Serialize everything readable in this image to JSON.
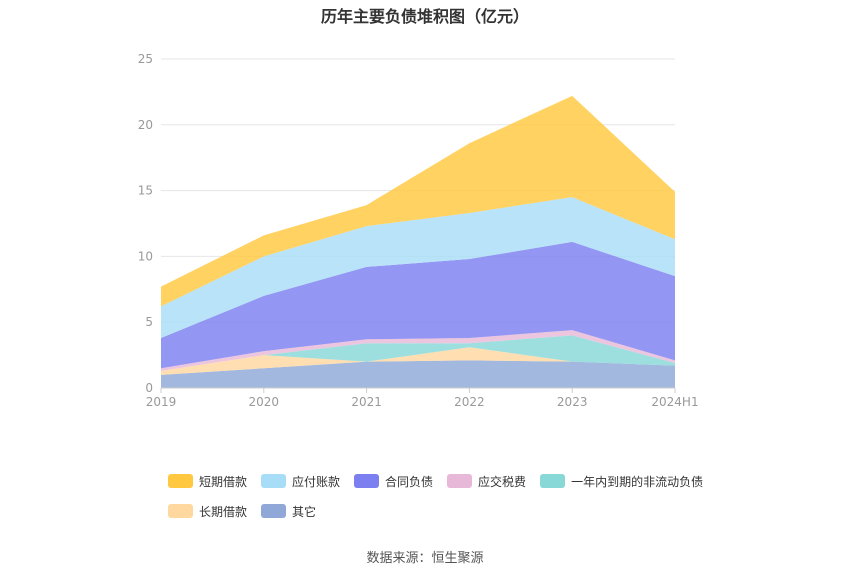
{
  "chart_data": {
    "type": "area",
    "title": "历年主要负债堆积图（亿元）",
    "xlabel": "",
    "ylabel": "",
    "categories": [
      "2019",
      "2020",
      "2021",
      "2022",
      "2023",
      "2024H1"
    ],
    "ylim": [
      0,
      25
    ],
    "yticks": [
      0,
      5,
      10,
      15,
      20,
      25
    ],
    "grid": true,
    "stacked": true,
    "legend_position": "bottom",
    "series": [
      {
        "name": "其它",
        "color": "#8fa8d8",
        "values": [
          1.0,
          1.5,
          2.0,
          2.1,
          2.0,
          1.7
        ]
      },
      {
        "name": "长期借款",
        "color": "#ffd8a0",
        "values": [
          0.3,
          1.0,
          0.0,
          1.0,
          0.0,
          0.0
        ]
      },
      {
        "name": "一年内到期的非流动负债",
        "color": "#88d8d8",
        "values": [
          0.0,
          0.0,
          1.4,
          0.3,
          2.0,
          0.2
        ]
      },
      {
        "name": "应交税费",
        "color": "#e8b8d8",
        "values": [
          0.2,
          0.3,
          0.3,
          0.4,
          0.4,
          0.2
        ]
      },
      {
        "name": "合同负债",
        "color": "#7b7ff0",
        "values": [
          2.3,
          4.2,
          5.5,
          6.0,
          6.7,
          6.4
        ]
      },
      {
        "name": "应付账款",
        "color": "#a8ddf8",
        "values": [
          2.4,
          3.0,
          3.1,
          3.5,
          3.4,
          2.8
        ]
      },
      {
        "name": "短期借款",
        "color": "#ffc840",
        "values": [
          1.5,
          1.6,
          1.6,
          5.3,
          7.7,
          3.6
        ]
      }
    ],
    "legend_order": [
      "短期借款",
      "应付账款",
      "合同负债",
      "应交税费",
      "一年内到期的非流动负债",
      "长期借款",
      "其它"
    ]
  },
  "footer": {
    "source": "数据来源：恒生聚源"
  }
}
